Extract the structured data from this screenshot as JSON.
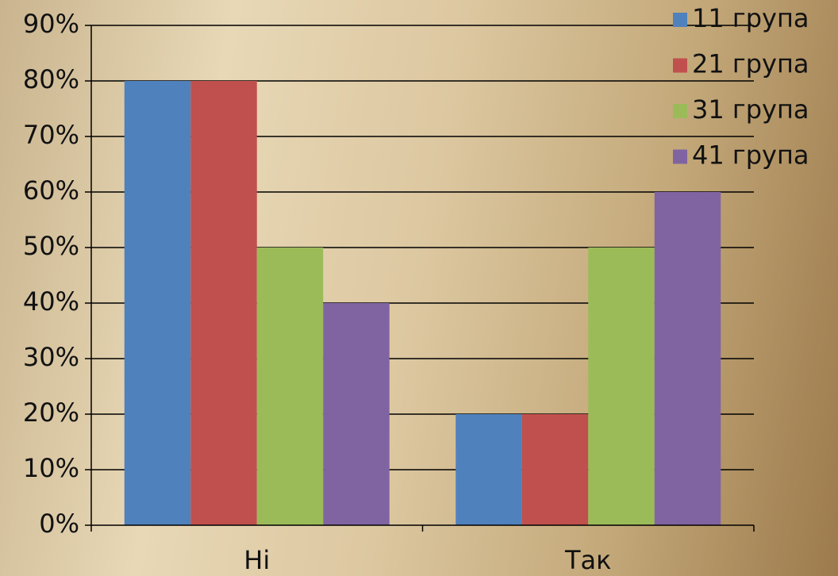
{
  "chart_data": {
    "type": "bar",
    "categories": [
      "Ні",
      "Так"
    ],
    "series": [
      {
        "name": "11 група",
        "color": "#4f81bd",
        "values": [
          80,
          20
        ]
      },
      {
        "name": "21 група",
        "color": "#c0504d",
        "values": [
          80,
          20
        ]
      },
      {
        "name": "31 група",
        "color": "#9bbb59",
        "values": [
          50,
          50
        ]
      },
      {
        "name": "41 група",
        "color": "#8064a2",
        "values": [
          40,
          60
        ]
      }
    ],
    "ylim": [
      0,
      90
    ],
    "yticks": [
      {
        "value": 0,
        "label": "0%"
      },
      {
        "value": 10,
        "label": "10%"
      },
      {
        "value": 20,
        "label": "20%"
      },
      {
        "value": 30,
        "label": "30%"
      },
      {
        "value": 40,
        "label": "40%"
      },
      {
        "value": 50,
        "label": "50%"
      },
      {
        "value": 60,
        "label": "60%"
      },
      {
        "value": 70,
        "label": "70%"
      },
      {
        "value": 80,
        "label": "80%"
      },
      {
        "value": 90,
        "label": "90%"
      }
    ],
    "grid": true,
    "legend": "top-right"
  }
}
